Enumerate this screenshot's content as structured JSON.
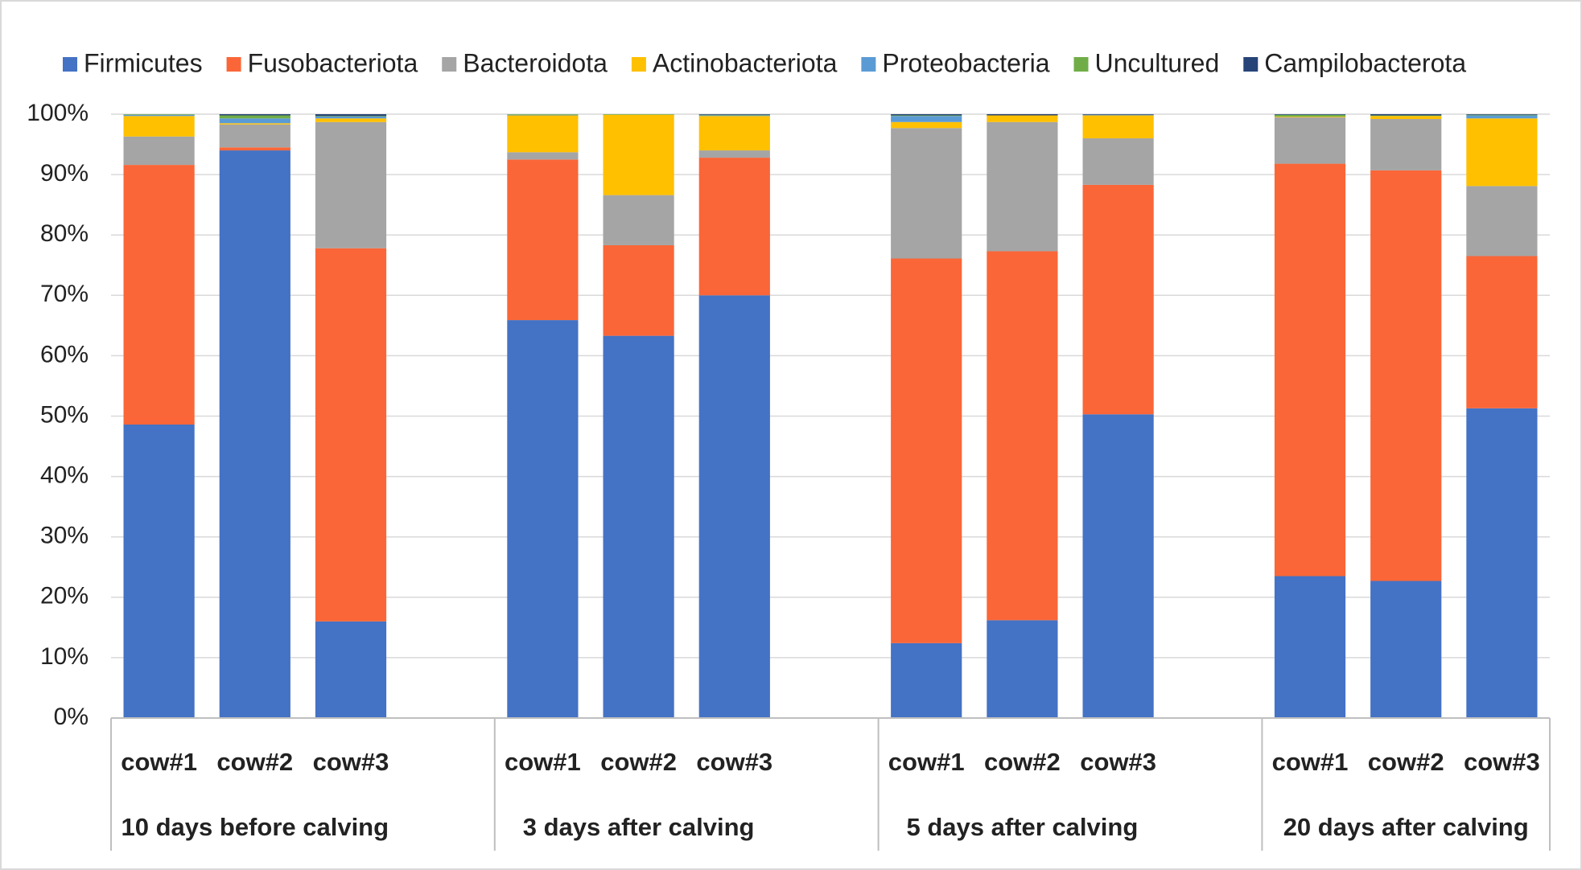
{
  "chart_data": {
    "type": "bar",
    "stacked": true,
    "categories": [
      "cow#1",
      "cow#2",
      "cow#3",
      "cow#1",
      "cow#2",
      "cow#3",
      "cow#1",
      "cow#2",
      "cow#3",
      "cow#1",
      "cow#2",
      "cow#3"
    ],
    "groups": [
      "10 days before calving",
      "3 days after calving",
      "5 days after calving",
      "20 days after calving"
    ],
    "series": [
      {
        "name": "Firmicutes",
        "color": "#4472c4",
        "values": [
          48.6,
          94.0,
          16.0,
          65.9,
          63.3,
          70.0,
          12.4,
          16.2,
          50.3,
          23.5,
          22.7,
          51.3
        ]
      },
      {
        "name": "Fusobacteriota",
        "color": "#fa6638",
        "values": [
          43.0,
          0.5,
          61.8,
          26.6,
          15.0,
          22.8,
          63.7,
          61.1,
          38.0,
          68.3,
          68.0,
          25.2
        ]
      },
      {
        "name": "Bacteroidota",
        "color": "#a5a5a5",
        "values": [
          4.7,
          3.8,
          20.9,
          1.2,
          8.3,
          1.2,
          21.6,
          21.4,
          7.7,
          7.7,
          8.5,
          11.6
        ]
      },
      {
        "name": "Actinobacteriota",
        "color": "#ffc000",
        "values": [
          3.4,
          0.2,
          0.6,
          6.1,
          13.3,
          5.7,
          1.0,
          1.1,
          3.8,
          0.1,
          0.5,
          11.2
        ]
      },
      {
        "name": "Proteobacteria",
        "color": "#5b9bd5",
        "values": [
          0.2,
          0.8,
          0.3,
          0.1,
          0.0,
          0.1,
          1.0,
          0.0,
          0.1,
          0.0,
          0.0,
          0.5
        ]
      },
      {
        "name": "Uncultured",
        "color": "#70ad47",
        "values": [
          0.1,
          0.5,
          0.1,
          0.1,
          0.1,
          0.1,
          0.1,
          0.0,
          0.0,
          0.3,
          0.1,
          0.1
        ]
      },
      {
        "name": "Campilobacterota",
        "color": "#264478",
        "values": [
          0.0,
          0.2,
          0.3,
          0.0,
          0.0,
          0.1,
          0.2,
          0.2,
          0.1,
          0.1,
          0.2,
          0.1
        ]
      }
    ],
    "ylim": [
      0,
      100
    ],
    "yticks": [
      {
        "value": 0,
        "label": "0%"
      },
      {
        "value": 10,
        "label": "10%"
      },
      {
        "value": 20,
        "label": "20%"
      },
      {
        "value": 30,
        "label": "30%"
      },
      {
        "value": 40,
        "label": "40%"
      },
      {
        "value": 50,
        "label": "50%"
      },
      {
        "value": 60,
        "label": "60%"
      },
      {
        "value": 70,
        "label": "70%"
      },
      {
        "value": 80,
        "label": "80%"
      },
      {
        "value": 90,
        "label": "90%"
      },
      {
        "value": 100,
        "label": "100%"
      }
    ],
    "grid": true,
    "legend": "top"
  }
}
